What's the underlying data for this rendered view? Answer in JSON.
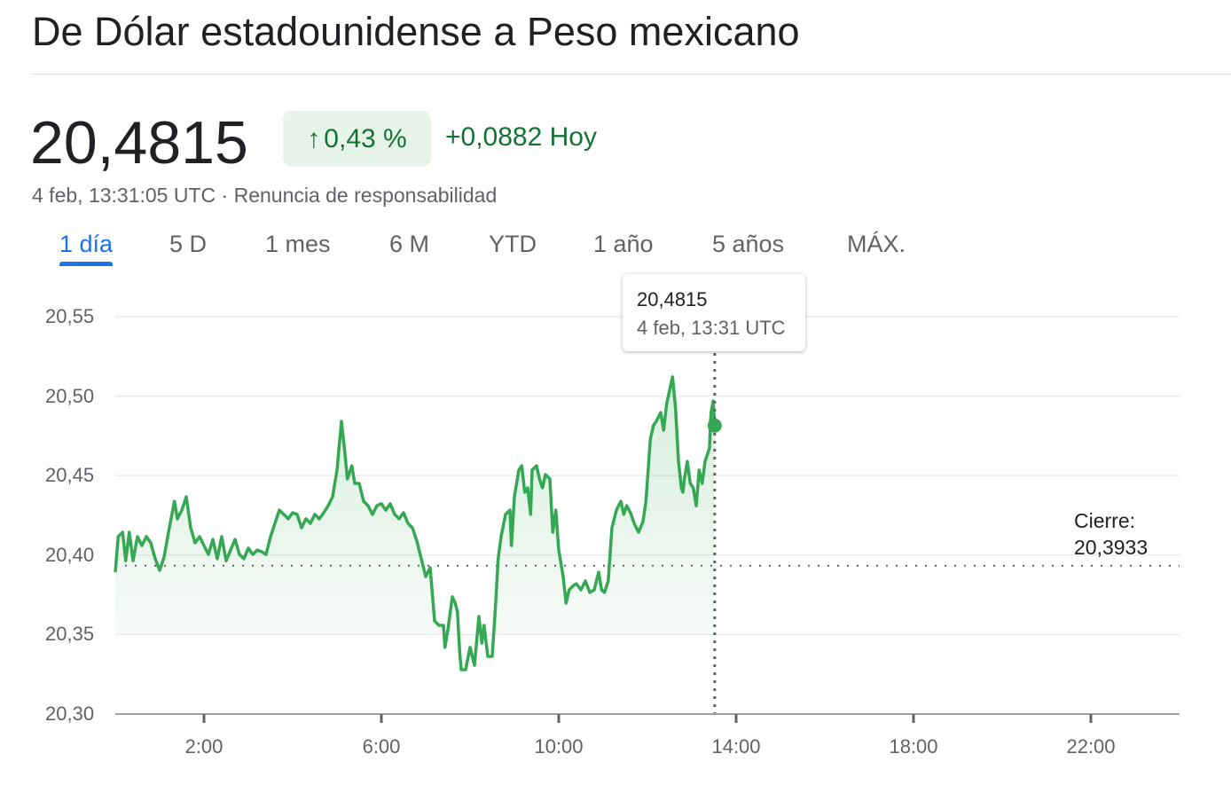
{
  "header": {
    "title": "De Dólar estadounidense a Peso mexicano",
    "price": "20,4815",
    "change_percent": "0,43 %",
    "change_arrow_icon": "arrow-up-icon",
    "change_abs": "+0,0882 Hoy",
    "timestamp": "4 feb, 13:31:05 UTC",
    "separator": " · ",
    "disclaimer": "Renuncia de responsabilidad"
  },
  "tabs": [
    {
      "label": "1 día",
      "active": true
    },
    {
      "label": "5 D"
    },
    {
      "label": "1 mes"
    },
    {
      "label": "6 M"
    },
    {
      "label": "YTD"
    },
    {
      "label": "1 año"
    },
    {
      "label": "5 años"
    },
    {
      "label": "MÁX."
    }
  ],
  "tooltip": {
    "value": "20,4815",
    "date": "4 feb, 13:31 UTC"
  },
  "close": {
    "label": "Cierre:",
    "value": "20,3933"
  },
  "colors": {
    "line": "#34a853",
    "positive_text": "#137333",
    "badge_bg": "#e6f4ea",
    "active_tab": "#1a73e8"
  },
  "chart_data": {
    "type": "area",
    "ylim": [
      20.3,
      20.55
    ],
    "xlim": [
      "0:00",
      "24:00"
    ],
    "yticks": [
      20.3,
      20.35,
      20.4,
      20.45,
      20.5,
      20.55
    ],
    "ytick_labels": [
      "20,30",
      "20,35",
      "20,40",
      "20,45",
      "20,50",
      "20,55"
    ],
    "xticks": [
      "2:00",
      "6:00",
      "10:00",
      "14:00",
      "18:00",
      "22:00"
    ],
    "grid": true,
    "previous_close": 20.3933,
    "current_point": [
      "13:31",
      20.4815
    ],
    "points": [
      [
        "0:00",
        20.3893
      ],
      [
        "0:04",
        20.4116
      ],
      [
        "0:10",
        20.4144
      ],
      [
        "0:14",
        20.3965
      ],
      [
        "0:19",
        20.4144
      ],
      [
        "0:24",
        20.3965
      ],
      [
        "0:30",
        20.4116
      ],
      [
        "0:36",
        20.406
      ],
      [
        "0:42",
        20.4116
      ],
      [
        "0:48",
        20.4077
      ],
      [
        "0:54",
        20.3977
      ],
      [
        "1:00",
        20.3904
      ],
      [
        "1:06",
        20.3988
      ],
      [
        "1:12",
        20.4144
      ],
      [
        "1:20",
        20.4339
      ],
      [
        "1:24",
        20.4228
      ],
      [
        "1:30",
        20.4283
      ],
      [
        "1:36",
        20.4367
      ],
      [
        "1:42",
        20.4172
      ],
      [
        "1:48",
        20.4077
      ],
      [
        "1:54",
        20.4116
      ],
      [
        "2:00",
        20.406
      ],
      [
        "2:06",
        20.4004
      ],
      [
        "2:12",
        20.4099
      ],
      [
        "2:18",
        20.3977
      ],
      [
        "2:24",
        20.4116
      ],
      [
        "2:30",
        20.3965
      ],
      [
        "2:36",
        20.4032
      ],
      [
        "2:42",
        20.4099
      ],
      [
        "2:48",
        20.4004
      ],
      [
        "2:54",
        20.3977
      ],
      [
        "3:00",
        20.4044
      ],
      [
        "3:06",
        20.4004
      ],
      [
        "3:12",
        20.4032
      ],
      [
        "3:18",
        20.4021
      ],
      [
        "3:24",
        20.4004
      ],
      [
        "3:30",
        20.4116
      ],
      [
        "3:36",
        20.42
      ],
      [
        "3:42",
        20.4283
      ],
      [
        "3:48",
        20.4256
      ],
      [
        "3:54",
        20.4228
      ],
      [
        "4:00",
        20.4267
      ],
      [
        "4:06",
        20.4256
      ],
      [
        "4:12",
        20.4172
      ],
      [
        "4:18",
        20.4228
      ],
      [
        "4:24",
        20.42
      ],
      [
        "4:30",
        20.4256
      ],
      [
        "4:36",
        20.4228
      ],
      [
        "4:42",
        20.4267
      ],
      [
        "4:48",
        20.4311
      ],
      [
        "4:54",
        20.4367
      ],
      [
        "5:00",
        20.4535
      ],
      [
        "5:06",
        20.4842
      ],
      [
        "5:10",
        20.4674
      ],
      [
        "5:14",
        20.4479
      ],
      [
        "5:20",
        20.4562
      ],
      [
        "5:24",
        20.4451
      ],
      [
        "5:30",
        20.4451
      ],
      [
        "5:36",
        20.4339
      ],
      [
        "5:42",
        20.4311
      ],
      [
        "5:48",
        20.4256
      ],
      [
        "5:54",
        20.4311
      ],
      [
        "6:00",
        20.4323
      ],
      [
        "6:06",
        20.4283
      ],
      [
        "6:12",
        20.4323
      ],
      [
        "6:18",
        20.4256
      ],
      [
        "6:24",
        20.4228
      ],
      [
        "6:30",
        20.4267
      ],
      [
        "6:36",
        20.42
      ],
      [
        "6:42",
        20.4172
      ],
      [
        "6:48",
        20.4088
      ],
      [
        "6:54",
        20.3977
      ],
      [
        "7:00",
        20.3865
      ],
      [
        "7:06",
        20.3921
      ],
      [
        "7:08",
        20.3809
      ],
      [
        "7:12",
        20.3586
      ],
      [
        "7:18",
        20.3558
      ],
      [
        "7:24",
        20.3558
      ],
      [
        "7:26",
        20.3419
      ],
      [
        "7:30",
        20.353
      ],
      [
        "7:36",
        20.3737
      ],
      [
        "7:40",
        20.3698
      ],
      [
        "7:43",
        20.3642
      ],
      [
        "7:46",
        20.3391
      ],
      [
        "7:48",
        20.3279
      ],
      [
        "7:54",
        20.3279
      ],
      [
        "8:00",
        20.3419
      ],
      [
        "8:06",
        20.3307
      ],
      [
        "8:12",
        20.3614
      ],
      [
        "8:16",
        20.3446
      ],
      [
        "8:19",
        20.3558
      ],
      [
        "8:24",
        20.3363
      ],
      [
        "8:30",
        20.3363
      ],
      [
        "8:34",
        20.3642
      ],
      [
        "8:38",
        20.3977
      ],
      [
        "8:42",
        20.4116
      ],
      [
        "8:48",
        20.4256
      ],
      [
        "8:54",
        20.4283
      ],
      [
        "8:56",
        20.406
      ],
      [
        "9:00",
        20.4367
      ],
      [
        "9:06",
        20.4535
      ],
      [
        "9:10",
        20.4562
      ],
      [
        "9:14",
        20.4395
      ],
      [
        "9:18",
        20.4423
      ],
      [
        "9:22",
        20.4256
      ],
      [
        "9:24",
        20.4535
      ],
      [
        "9:30",
        20.4562
      ],
      [
        "9:34",
        20.4479
      ],
      [
        "9:38",
        20.4423
      ],
      [
        "9:42",
        20.4507
      ],
      [
        "9:48",
        20.4479
      ],
      [
        "9:52",
        20.4144
      ],
      [
        "9:56",
        20.4283
      ],
      [
        "10:00",
        20.4032
      ],
      [
        "10:06",
        20.3865
      ],
      [
        "10:10",
        20.3698
      ],
      [
        "10:14",
        20.3781
      ],
      [
        "10:20",
        20.3809
      ],
      [
        "10:24",
        20.382
      ],
      [
        "10:30",
        20.3781
      ],
      [
        "10:36",
        20.3837
      ],
      [
        "10:42",
        20.3765
      ],
      [
        "10:48",
        20.3781
      ],
      [
        "10:54",
        20.3893
      ],
      [
        "10:58",
        20.3781
      ],
      [
        "11:02",
        20.3765
      ],
      [
        "11:07",
        20.3837
      ],
      [
        "11:12",
        20.4172
      ],
      [
        "11:18",
        20.4283
      ],
      [
        "11:24",
        20.4339
      ],
      [
        "11:28",
        20.4256
      ],
      [
        "11:32",
        20.4311
      ],
      [
        "11:38",
        20.4256
      ],
      [
        "11:42",
        20.42
      ],
      [
        "11:48",
        20.4144
      ],
      [
        "11:54",
        20.4211
      ],
      [
        "11:58",
        20.4339
      ],
      [
        "12:04",
        20.473
      ],
      [
        "12:08",
        20.4814
      ],
      [
        "12:12",
        20.4842
      ],
      [
        "12:18",
        20.4897
      ],
      [
        "12:22",
        20.4786
      ],
      [
        "12:26",
        20.4953
      ],
      [
        "12:30",
        20.5037
      ],
      [
        "12:34",
        20.5121
      ],
      [
        "12:38",
        20.4925
      ],
      [
        "12:42",
        20.459
      ],
      [
        "12:46",
        20.4423
      ],
      [
        "12:48",
        20.4395
      ],
      [
        "12:50",
        20.4479
      ],
      [
        "12:54",
        20.459
      ],
      [
        "12:58",
        20.4451
      ],
      [
        "13:02",
        20.4423
      ],
      [
        "13:06",
        20.4311
      ],
      [
        "13:10",
        20.4535
      ],
      [
        "13:14",
        20.4451
      ],
      [
        "13:18",
        20.459
      ],
      [
        "13:24",
        20.4674
      ],
      [
        "13:26",
        20.4897
      ],
      [
        "13:29",
        20.497
      ],
      [
        "13:31",
        20.4815
      ]
    ]
  }
}
